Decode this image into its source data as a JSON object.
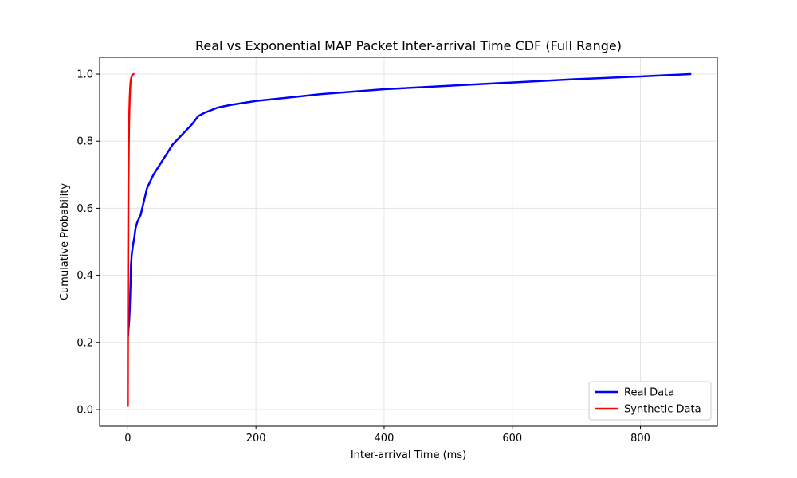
{
  "chart_data": {
    "type": "line",
    "title": "Real vs Exponential MAP Packet Inter-arrival Time CDF (Full Range)",
    "xlabel": "Inter-arrival Time (ms)",
    "ylabel": "Cumulative Probability",
    "xlim": [
      -44,
      920
    ],
    "ylim": [
      -0.05,
      1.05
    ],
    "xticks": [
      0,
      200,
      400,
      600,
      800
    ],
    "xtick_labels": [
      "0",
      "200",
      "400",
      "600",
      "800"
    ],
    "yticks": [
      0.0,
      0.2,
      0.4,
      0.6,
      0.8,
      1.0
    ],
    "ytick_labels": [
      "0.0",
      "0.2",
      "0.4",
      "0.6",
      "0.8",
      "1.0"
    ],
    "grid": true,
    "legend_position": "lower right",
    "series": [
      {
        "name": "Real Data",
        "color": "#0000ff",
        "x": [
          0.5,
          1,
          2,
          3,
          4,
          5,
          6,
          8,
          10,
          12,
          15,
          20,
          25,
          30,
          40,
          50,
          60,
          70,
          80,
          90,
          100,
          110,
          120,
          140,
          160,
          200,
          300,
          400,
          500,
          600,
          700,
          800,
          878
        ],
        "y": [
          0.22,
          0.24,
          0.26,
          0.3,
          0.36,
          0.43,
          0.46,
          0.49,
          0.51,
          0.54,
          0.56,
          0.58,
          0.62,
          0.66,
          0.7,
          0.73,
          0.76,
          0.79,
          0.81,
          0.83,
          0.85,
          0.875,
          0.885,
          0.9,
          0.908,
          0.92,
          0.94,
          0.955,
          0.965,
          0.975,
          0.985,
          0.993,
          1.0
        ]
      },
      {
        "name": "Synthetic Data",
        "color": "#ff0000",
        "x": [
          0.0,
          0.1,
          0.3,
          0.5,
          0.8,
          1.0,
          1.5,
          2.0,
          3.0,
          4.0,
          5.0,
          6.0,
          7.0,
          8.0,
          9.0
        ],
        "y": [
          0.01,
          0.12,
          0.3,
          0.45,
          0.6,
          0.68,
          0.78,
          0.86,
          0.93,
          0.97,
          0.985,
          0.993,
          0.997,
          0.999,
          1.0
        ]
      }
    ]
  }
}
